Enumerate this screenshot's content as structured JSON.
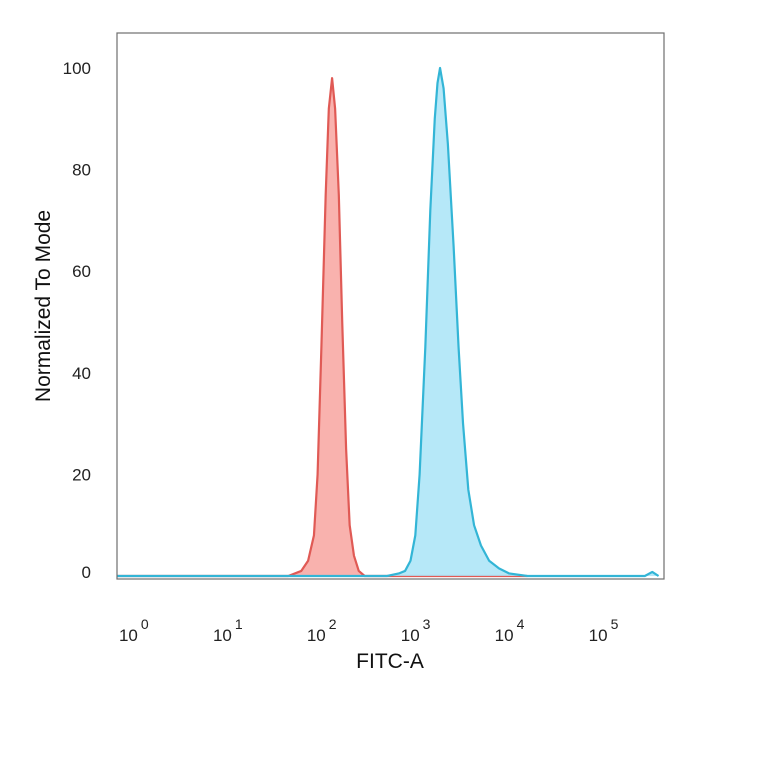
{
  "chart_data": {
    "type": "area",
    "xlabel": "FITC-A",
    "ylabel": "Normalized To Mode",
    "xscale": "log",
    "xlim": [
      0.6,
      400000
    ],
    "ylim": [
      0,
      105
    ],
    "grid": false,
    "legend": "none",
    "x_ticks": [
      {
        "base": "10",
        "exp": "0"
      },
      {
        "base": "10",
        "exp": "1"
      },
      {
        "base": "10",
        "exp": "2"
      },
      {
        "base": "10",
        "exp": "3"
      },
      {
        "base": "10",
        "exp": "4"
      },
      {
        "base": "10",
        "exp": "5"
      }
    ],
    "y_ticks": [
      "0",
      "20",
      "40",
      "60",
      "80",
      "100"
    ],
    "series": [
      {
        "color": "#e05a55",
        "fill": "#f8a5a0",
        "points": [
          [
            0.6,
            0
          ],
          [
            40,
            0
          ],
          [
            55,
            1
          ],
          [
            65,
            3
          ],
          [
            75,
            8
          ],
          [
            82,
            20
          ],
          [
            90,
            45
          ],
          [
            100,
            75
          ],
          [
            108,
            92
          ],
          [
            117,
            98
          ],
          [
            126,
            92
          ],
          [
            138,
            75
          ],
          [
            150,
            50
          ],
          [
            165,
            25
          ],
          [
            180,
            10
          ],
          [
            200,
            4
          ],
          [
            225,
            1
          ],
          [
            260,
            0
          ],
          [
            5000,
            0
          ],
          [
            14000,
            0
          ]
        ]
      },
      {
        "color": "#33b5d6",
        "fill": "#a9e4f7",
        "points": [
          [
            0.6,
            0
          ],
          [
            450,
            0
          ],
          [
            600,
            0.5
          ],
          [
            700,
            1
          ],
          [
            800,
            3
          ],
          [
            900,
            8
          ],
          [
            1000,
            20
          ],
          [
            1150,
            45
          ],
          [
            1300,
            72
          ],
          [
            1450,
            90
          ],
          [
            1550,
            97
          ],
          [
            1650,
            100
          ],
          [
            1800,
            96
          ],
          [
            2000,
            85
          ],
          [
            2300,
            65
          ],
          [
            2600,
            45
          ],
          [
            2900,
            30
          ],
          [
            3300,
            17
          ],
          [
            3800,
            10
          ],
          [
            4500,
            6
          ],
          [
            5500,
            3
          ],
          [
            7000,
            1.5
          ],
          [
            9000,
            0.5
          ],
          [
            14000,
            0
          ],
          [
            250000,
            0
          ],
          [
            300000,
            0.8
          ],
          [
            350000,
            0
          ]
        ]
      }
    ]
  }
}
